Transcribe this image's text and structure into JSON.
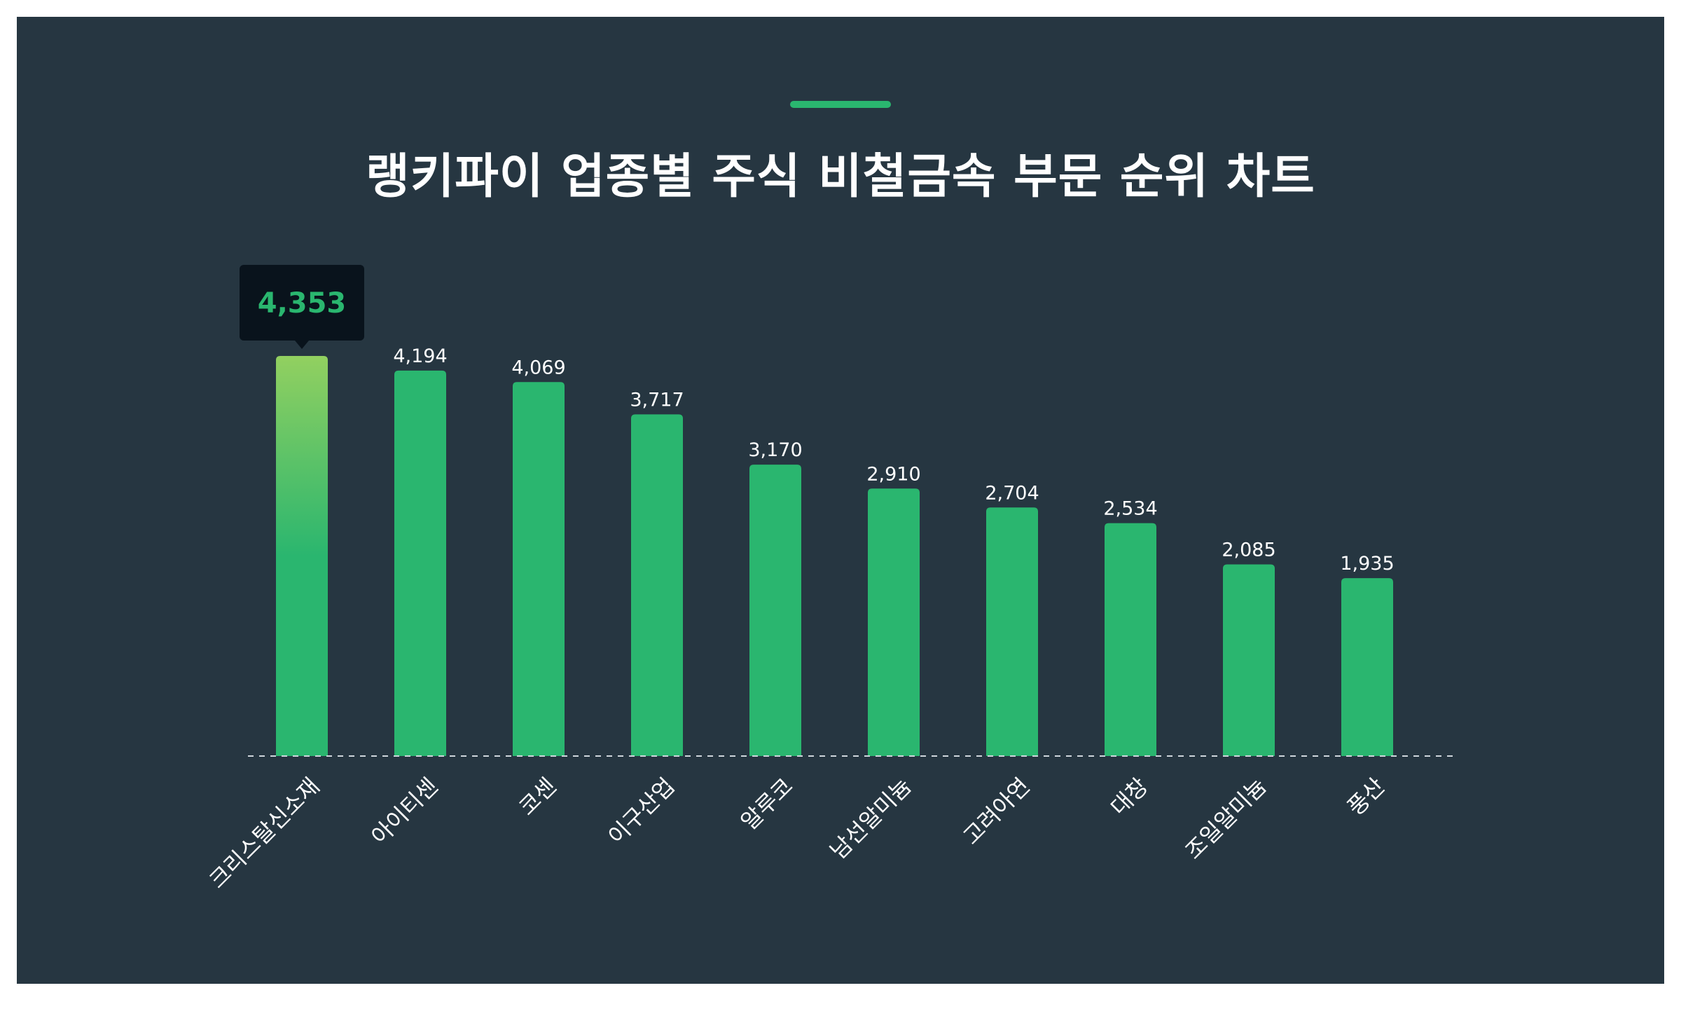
{
  "chart_data": {
    "type": "bar",
    "title": "랭키파이 업종별 주식 비철금속 부문 순위 차트",
    "categories": [
      "크리스탈신소재",
      "아이티센",
      "코센",
      "이구산업",
      "알루코",
      "남선알미늄",
      "고려아연",
      "대창",
      "조일알미늄",
      "풍산"
    ],
    "values": [
      4353,
      4194,
      4069,
      3717,
      3170,
      2910,
      2704,
      2534,
      2085,
      1935
    ],
    "value_labels": [
      "4,353",
      "4,194",
      "4,069",
      "3,717",
      "3,170",
      "2,910",
      "2,704",
      "2,534",
      "2,085",
      "1,935"
    ],
    "highlight_index": 0,
    "ylim": [
      0,
      4353
    ],
    "grid": false,
    "legend": "none",
    "colors": {
      "bar": "#2ab66f",
      "highlight_top": "#92d060",
      "highlight_bottom": "#2ab66f",
      "tooltip_bg": "#09131c",
      "tooltip_text": "#2ab66f",
      "background": "#263641",
      "baseline": "#cfd6dc"
    }
  }
}
